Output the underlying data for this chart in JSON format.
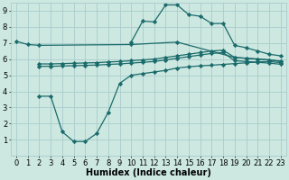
{
  "bg_color": "#cce8e0",
  "grid_color": "#aacccc",
  "line_color": "#1a6b6b",
  "line_width": 0.9,
  "marker": "D",
  "marker_size": 2.2,
  "xlabel": "Humidex (Indice chaleur)",
  "xlabel_fontsize": 7,
  "tick_fontsize": 6,
  "xlim": [
    -0.5,
    23.5
  ],
  "ylim": [
    0,
    9.5
  ],
  "xticks": [
    0,
    1,
    2,
    3,
    4,
    5,
    6,
    7,
    8,
    9,
    10,
    11,
    12,
    13,
    14,
    15,
    16,
    17,
    18,
    19,
    20,
    21,
    22,
    23
  ],
  "yticks": [
    1,
    2,
    3,
    4,
    5,
    6,
    7,
    8,
    9
  ],
  "series": [
    {
      "x": [
        0,
        1,
        2,
        10,
        14,
        19,
        20,
        21,
        22,
        23
      ],
      "y": [
        7.1,
        6.9,
        6.85,
        6.9,
        7.05,
        6.1,
        6.05,
        6.0,
        5.95,
        5.85
      ]
    },
    {
      "x": [
        2,
        3,
        4,
        5,
        6,
        7,
        8,
        9,
        10,
        11,
        12,
        13,
        14,
        15,
        16,
        17,
        18,
        19,
        20,
        21,
        22,
        23
      ],
      "y": [
        5.7,
        5.7,
        5.72,
        5.74,
        5.76,
        5.78,
        5.82,
        5.85,
        5.9,
        5.95,
        6.0,
        6.1,
        6.2,
        6.3,
        6.4,
        6.5,
        6.55,
        6.1,
        6.05,
        6.0,
        5.95,
        5.88
      ]
    },
    {
      "x": [
        2,
        3,
        4,
        5,
        6,
        7,
        8,
        9,
        10,
        11,
        12,
        13,
        14,
        15,
        16,
        17,
        18,
        19,
        20,
        21,
        22,
        23
      ],
      "y": [
        5.55,
        5.55,
        5.57,
        5.59,
        5.61,
        5.63,
        5.67,
        5.7,
        5.75,
        5.8,
        5.85,
        5.95,
        6.05,
        6.15,
        6.25,
        6.35,
        6.4,
        5.9,
        5.85,
        5.8,
        5.75,
        5.68
      ]
    },
    {
      "x": [
        2,
        3,
        4,
        5,
        6,
        7,
        8,
        9,
        10,
        11,
        12,
        13,
        14,
        15,
        16,
        17,
        18,
        19,
        20,
        21,
        22,
        23
      ],
      "y": [
        3.7,
        3.7,
        1.5,
        0.9,
        0.9,
        1.4,
        2.7,
        4.5,
        5.0,
        5.1,
        5.2,
        5.3,
        5.45,
        5.52,
        5.58,
        5.62,
        5.67,
        5.72,
        5.77,
        5.82,
        5.85,
        5.78
      ]
    },
    {
      "x": [
        10,
        11,
        12,
        13,
        14,
        15,
        16,
        17,
        18,
        19,
        20,
        21,
        22,
        23
      ],
      "y": [
        7.05,
        8.35,
        8.3,
        9.35,
        9.35,
        8.75,
        8.65,
        8.2,
        8.2,
        6.85,
        6.7,
        6.5,
        6.3,
        6.2
      ]
    }
  ]
}
